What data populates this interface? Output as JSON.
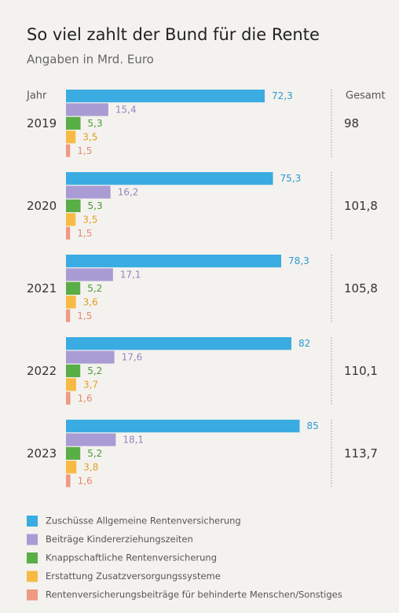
{
  "chart_data": {
    "type": "bar",
    "title": "So viel zahlt der Bund für die Rente",
    "subtitle": "Angaben in Mrd. Euro",
    "category_header": "Jahr",
    "categories": [
      "2019",
      "2020",
      "2021",
      "2022",
      "2023"
    ],
    "series": [
      {
        "name": "Zuschüsse Allgemeine Rentenversicherung",
        "color": "#3aace2",
        "label_color": "#2a9ad4",
        "values": [
          72.3,
          75.3,
          78.3,
          82,
          85
        ],
        "value_labels": [
          "72,3",
          "75,3",
          "78,3",
          "82",
          "85"
        ]
      },
      {
        "name": "Beiträge Kindererziehungszeiten",
        "color": "#a99bd3",
        "label_color": "#9286c0",
        "values": [
          15.4,
          16.2,
          17.1,
          17.6,
          18.1
        ],
        "value_labels": [
          "15,4",
          "16,2",
          "17,1",
          "17,6",
          "18,1"
        ]
      },
      {
        "name": "Knappschaftliche Rentenversicherung",
        "color": "#5aae47",
        "label_color": "#4c9a3a",
        "values": [
          5.3,
          5.3,
          5.2,
          5.2,
          5.2
        ],
        "value_labels": [
          "5,3",
          "5,3",
          "5,2",
          "5,2",
          "5,2"
        ]
      },
      {
        "name": "Erstattung Zusatzversorgungssysteme",
        "color": "#f7bb45",
        "label_color": "#e0a020",
        "values": [
          3.5,
          3.5,
          3.6,
          3.7,
          3.8
        ],
        "value_labels": [
          "3,5",
          "3,5",
          "3,6",
          "3,7",
          "3,8"
        ]
      },
      {
        "name": "Rentenversicherungsbeiträge für behinderte Menschen/Sonstiges",
        "color": "#ee9a84",
        "label_color": "#e08a70",
        "values": [
          1.5,
          1.5,
          1.5,
          1.6,
          1.6
        ],
        "value_labels": [
          "1,5",
          "1,5",
          "1,5",
          "1,6",
          "1,6"
        ]
      }
    ],
    "totals": {
      "header": "Gesamt",
      "values": [
        98,
        101.8,
        105.8,
        110.1,
        113.7
      ],
      "value_labels": [
        "98",
        "101,8",
        "105,8",
        "110,1",
        "113,7"
      ]
    }
  }
}
